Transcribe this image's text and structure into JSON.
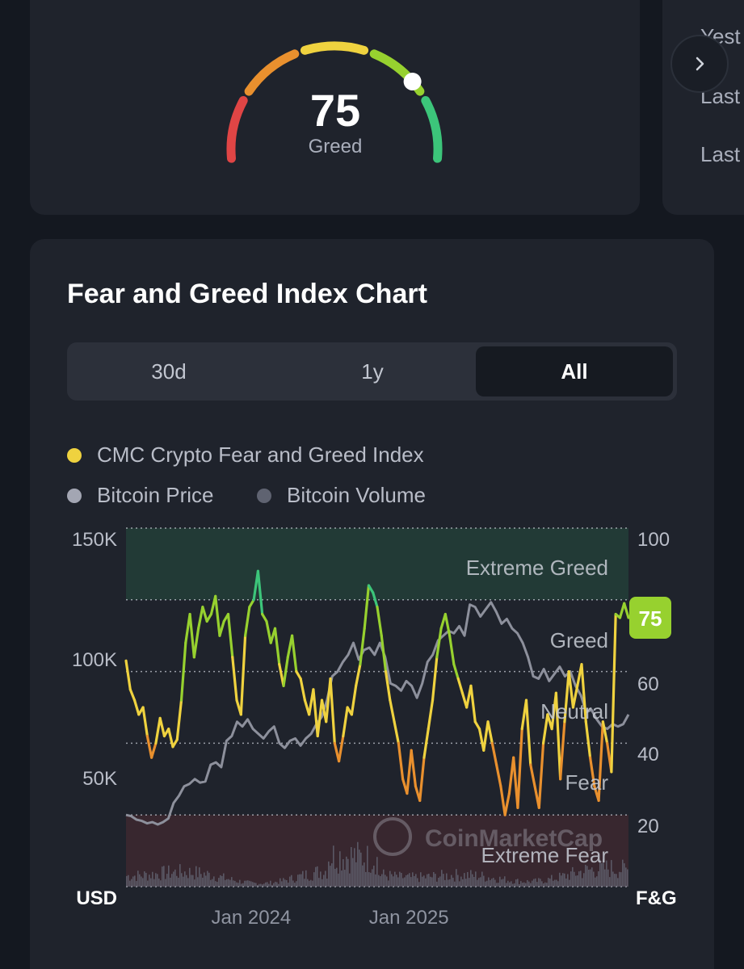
{
  "gauge": {
    "value": "75",
    "label": "Greed",
    "value_numeric": 75,
    "colors": [
      "#e04545",
      "#e9902e",
      "#efd23f",
      "#97d12f",
      "#3cc57a"
    ]
  },
  "history": {
    "labels": [
      "Yest",
      "Last",
      "Last"
    ]
  },
  "chart_section": {
    "title": "Fear and Greed Index Chart",
    "tabs": [
      {
        "label": "30d",
        "active": false
      },
      {
        "label": "1y",
        "active": false
      },
      {
        "label": "All",
        "active": true
      }
    ],
    "legend": [
      {
        "label": "CMC Crypto Fear and Greed Index",
        "color": "#efd23f"
      },
      {
        "label": "Bitcoin Price",
        "color": "#a3a6b3"
      },
      {
        "label": "Bitcoin Volume",
        "color": "#5f6371"
      }
    ],
    "watermark": "CoinMarketCap"
  },
  "chart_data": {
    "type": "line",
    "left_axis": {
      "unit": "USD",
      "ticks": [
        "150K",
        "100K",
        "50K"
      ],
      "tick_values": [
        150000,
        100000,
        50000
      ],
      "range": [
        0,
        150000
      ]
    },
    "right_axis": {
      "unit": "F&G",
      "ticks": [
        "100",
        "60",
        "40",
        "20"
      ],
      "tick_values": [
        100,
        60,
        40,
        20
      ],
      "range": [
        0,
        100
      ]
    },
    "x_axis": {
      "ticks": [
        "Jan 2024",
        "Jan 2025"
      ],
      "tick_positions": [
        0.249,
        0.563
      ]
    },
    "zones": [
      {
        "label": "Extreme Greed",
        "from": 80,
        "to": 100,
        "color": "#3cc57a"
      },
      {
        "label": "Greed",
        "from": 60,
        "to": 80,
        "color": "#97d12f"
      },
      {
        "label": "Neutral",
        "from": 40,
        "to": 60,
        "color": "#efd23f"
      },
      {
        "label": "Fear",
        "from": 20,
        "to": 40,
        "color": "#e9902e"
      },
      {
        "label": "Extreme Fear",
        "from": 0,
        "to": 20,
        "color": "#e04545"
      }
    ],
    "current_value": "75",
    "series": [
      {
        "name": "CMC Crypto Fear and Greed Index",
        "axis": "right",
        "values": [
          63,
          55,
          52,
          48,
          50,
          42,
          36,
          40,
          47,
          42,
          44,
          39,
          41,
          52,
          68,
          76,
          64,
          72,
          78,
          74,
          76,
          81,
          70,
          74,
          76,
          64,
          52,
          48,
          70,
          78,
          80,
          88,
          76,
          74,
          68,
          72,
          62,
          56,
          64,
          70,
          60,
          58,
          52,
          48,
          55,
          42,
          52,
          46,
          58,
          40,
          35,
          42,
          50,
          48,
          56,
          62,
          72,
          84,
          82,
          78,
          70,
          60,
          52,
          46,
          40,
          30,
          26,
          38,
          28,
          24,
          36,
          44,
          52,
          64,
          72,
          76,
          70,
          62,
          58,
          54,
          50,
          56,
          46,
          44,
          38,
          46,
          40,
          34,
          28,
          20,
          26,
          36,
          22,
          44,
          52,
          34,
          28,
          22,
          40,
          48,
          44,
          54,
          30,
          46,
          60,
          50,
          56,
          62,
          46,
          36,
          28,
          24,
          46,
          40,
          32,
          76,
          75,
          79,
          75
        ]
      },
      {
        "name": "Bitcoin Price",
        "axis": "left",
        "values": [
          30000,
          29500,
          28000,
          27500,
          26500,
          27000,
          26000,
          27000,
          28500,
          35000,
          38000,
          42000,
          43000,
          45000,
          43500,
          44000,
          51000,
          52000,
          50000,
          61000,
          63000,
          69000,
          67000,
          70000,
          66000,
          64000,
          62000,
          65000,
          67000,
          60000,
          58000,
          61000,
          62000,
          59000,
          62000,
          64000,
          68000,
          71000,
          78000,
          88000,
          90000,
          94000,
          97000,
          102000,
          95000,
          99000,
          100000,
          97000,
          102000,
          96000,
          85000,
          84000,
          82000,
          86000,
          84000,
          79000,
          85000,
          94000,
          97000,
          103000,
          105000,
          107000,
          106000,
          109000,
          105000,
          118000,
          117000,
          113000,
          116000,
          119000,
          115000,
          110000,
          112000,
          108000,
          106000,
          102000,
          96000,
          88000,
          87000,
          91000,
          86000,
          89000,
          92000,
          88000,
          90000,
          84000,
          80000,
          73000,
          74000,
          70000,
          67000,
          66000,
          68000,
          67000,
          68000,
          72000
        ]
      }
    ],
    "volume_note": "Bitcoin Volume shown as bars along the bottom of the plot"
  }
}
